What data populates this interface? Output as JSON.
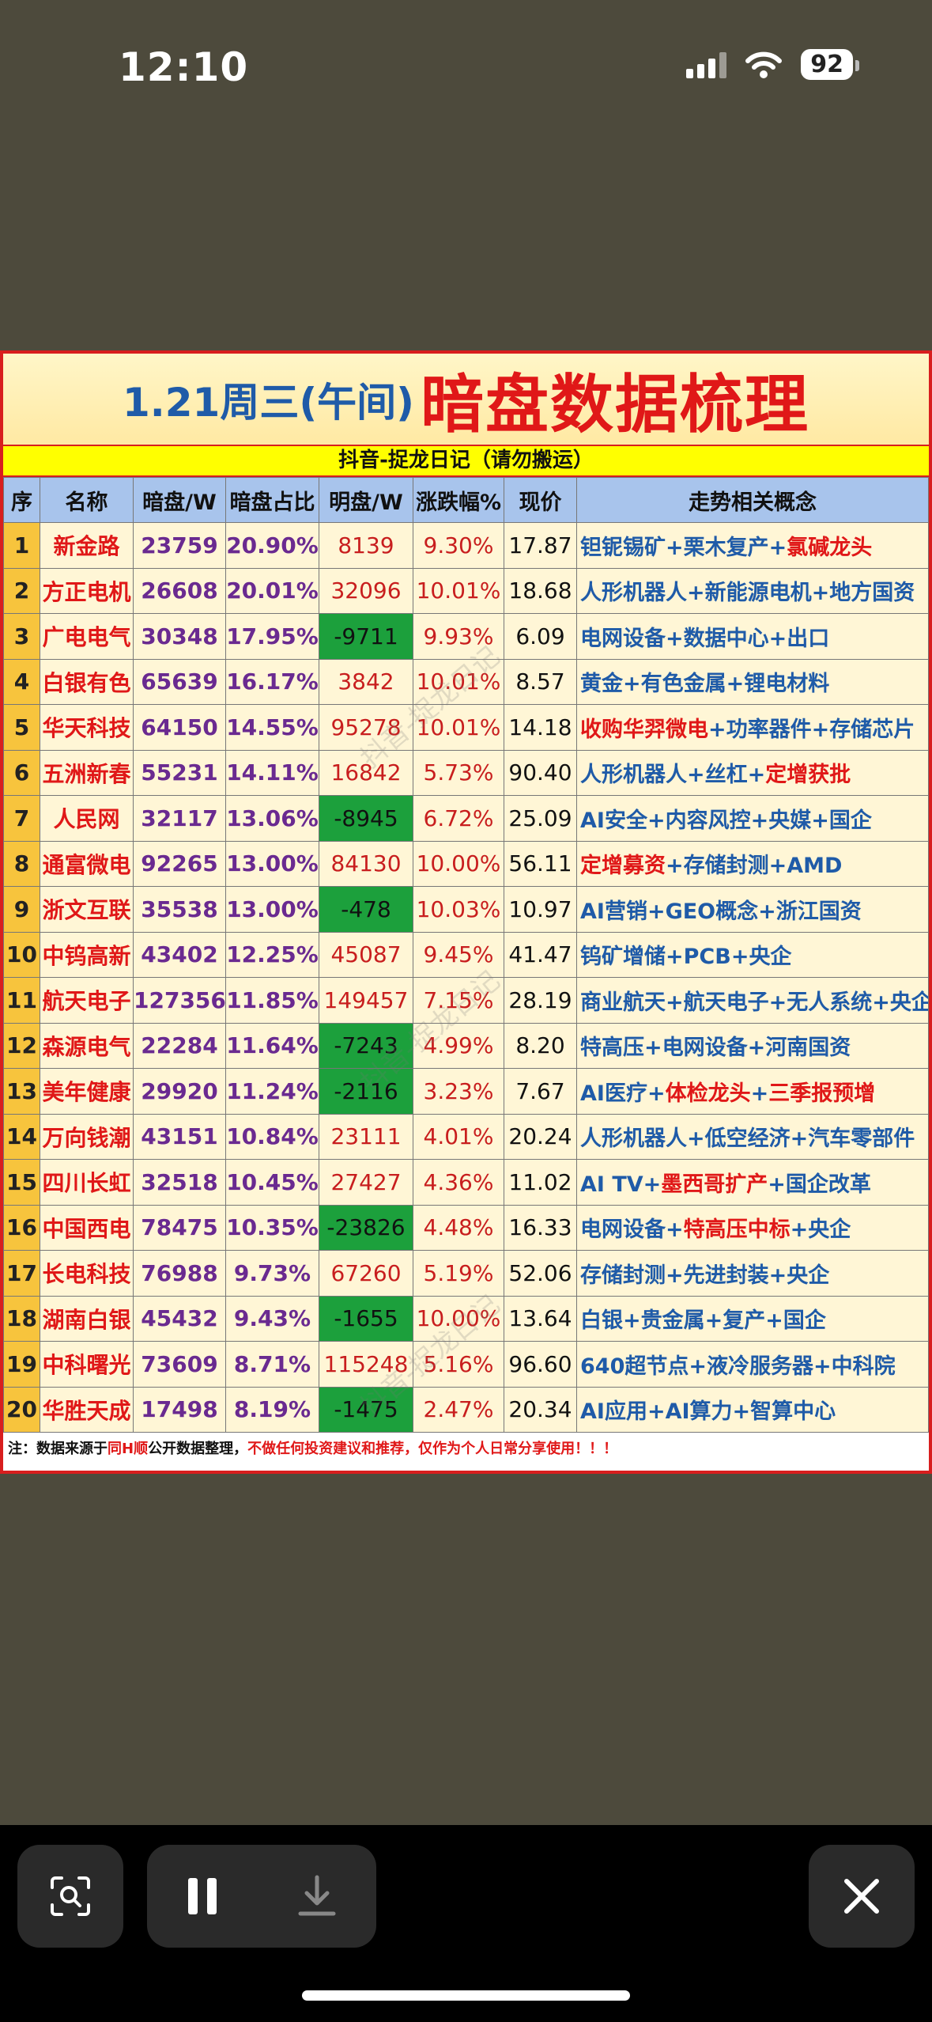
{
  "status_bar": {
    "time": "12:10",
    "battery": "92"
  },
  "card": {
    "title_date": "1.21周三(午间)",
    "title_main": "暗盘数据梳理",
    "subtitle": "抖音-捉龙日记（请勿搬运）",
    "headers": [
      "序",
      "名称",
      "暗盘/W",
      "暗盘占比",
      "明盘/W",
      "涨跌幅%",
      "现价",
      "走势相关概念"
    ],
    "rows": [
      {
        "seq": "1",
        "name": "新金路",
        "dark": "23759",
        "ratio": "20.90%",
        "ming": "8139",
        "chg": "9.30%",
        "price": "17.87",
        "concept": [
          {
            "t": "钽铌锡矿",
            "r": false
          },
          {
            "t": "+",
            "r": false
          },
          {
            "t": "栗木复产",
            "r": false
          },
          {
            "t": "+",
            "r": false
          },
          {
            "t": "氯碱龙头",
            "r": true
          }
        ]
      },
      {
        "seq": "2",
        "name": "方正电机",
        "dark": "26608",
        "ratio": "20.01%",
        "ming": "32096",
        "chg": "10.01%",
        "price": "18.68",
        "concept": [
          {
            "t": "人形机器人",
            "r": false
          },
          {
            "t": "+",
            "r": false
          },
          {
            "t": "新能源电机",
            "r": false
          },
          {
            "t": "+",
            "r": false
          },
          {
            "t": "地方国资",
            "r": false
          }
        ]
      },
      {
        "seq": "3",
        "name": "广电电气",
        "dark": "30348",
        "ratio": "17.95%",
        "ming": "-9711",
        "chg": "9.93%",
        "price": "6.09",
        "concept": [
          {
            "t": "电网设备",
            "r": false
          },
          {
            "t": "+",
            "r": false
          },
          {
            "t": "数据中心",
            "r": false
          },
          {
            "t": "+",
            "r": false
          },
          {
            "t": "出口",
            "r": false
          }
        ]
      },
      {
        "seq": "4",
        "name": "白银有色",
        "dark": "65639",
        "ratio": "16.17%",
        "ming": "3842",
        "chg": "10.01%",
        "price": "8.57",
        "concept": [
          {
            "t": "黄金",
            "r": false
          },
          {
            "t": "+",
            "r": false
          },
          {
            "t": "有色金属",
            "r": false
          },
          {
            "t": "+",
            "r": false
          },
          {
            "t": "锂电材料",
            "r": false
          }
        ]
      },
      {
        "seq": "5",
        "name": "华天科技",
        "dark": "64150",
        "ratio": "14.55%",
        "ming": "95278",
        "chg": "10.01%",
        "price": "14.18",
        "concept": [
          {
            "t": "收购华羿微电",
            "r": true
          },
          {
            "t": "+",
            "r": false
          },
          {
            "t": "功率器件",
            "r": false
          },
          {
            "t": "+",
            "r": false
          },
          {
            "t": "存储芯片",
            "r": false
          }
        ]
      },
      {
        "seq": "6",
        "name": "五洲新春",
        "dark": "55231",
        "ratio": "14.11%",
        "ming": "16842",
        "chg": "5.73%",
        "price": "90.40",
        "concept": [
          {
            "t": "人形机器人",
            "r": false
          },
          {
            "t": "+",
            "r": false
          },
          {
            "t": "丝杠",
            "r": false
          },
          {
            "t": "+",
            "r": false
          },
          {
            "t": "定增获批",
            "r": true
          }
        ]
      },
      {
        "seq": "7",
        "name": "人民网",
        "dark": "32117",
        "ratio": "13.06%",
        "ming": "-8945",
        "chg": "6.72%",
        "price": "25.09",
        "concept": [
          {
            "t": "AI安全",
            "r": false
          },
          {
            "t": "+",
            "r": false
          },
          {
            "t": "内容风控",
            "r": false
          },
          {
            "t": "+",
            "r": false
          },
          {
            "t": "央媒",
            "r": false
          },
          {
            "t": "+",
            "r": false
          },
          {
            "t": "国企",
            "r": false
          }
        ]
      },
      {
        "seq": "8",
        "name": "通富微电",
        "dark": "92265",
        "ratio": "13.00%",
        "ming": "84130",
        "chg": "10.00%",
        "price": "56.11",
        "concept": [
          {
            "t": "定增募资",
            "r": true
          },
          {
            "t": "+",
            "r": false
          },
          {
            "t": "存储封测",
            "r": false
          },
          {
            "t": "+",
            "r": false
          },
          {
            "t": "AMD",
            "r": false
          }
        ]
      },
      {
        "seq": "9",
        "name": "浙文互联",
        "dark": "35538",
        "ratio": "13.00%",
        "ming": "-478",
        "chg": "10.03%",
        "price": "10.97",
        "concept": [
          {
            "t": "AI营销",
            "r": false
          },
          {
            "t": "+",
            "r": false
          },
          {
            "t": "GEO概念",
            "r": false
          },
          {
            "t": "+",
            "r": false
          },
          {
            "t": "浙江国资",
            "r": false
          }
        ]
      },
      {
        "seq": "10",
        "name": "中钨高新",
        "dark": "43402",
        "ratio": "12.25%",
        "ming": "45087",
        "chg": "9.45%",
        "price": "41.47",
        "concept": [
          {
            "t": "钨矿增储",
            "r": false
          },
          {
            "t": "+",
            "r": false
          },
          {
            "t": "PCB",
            "r": false
          },
          {
            "t": "+",
            "r": false
          },
          {
            "t": "央企",
            "r": false
          }
        ]
      },
      {
        "seq": "11",
        "name": "航天电子",
        "dark": "127356",
        "ratio": "11.85%",
        "ming": "149457",
        "chg": "7.15%",
        "price": "28.19",
        "concept": [
          {
            "t": "商业航天",
            "r": false
          },
          {
            "t": "+",
            "r": false
          },
          {
            "t": "航天电子",
            "r": false
          },
          {
            "t": "+",
            "r": false
          },
          {
            "t": "无人系统",
            "r": false
          },
          {
            "t": "+",
            "r": false
          },
          {
            "t": "央企",
            "r": false
          }
        ]
      },
      {
        "seq": "12",
        "name": "森源电气",
        "dark": "22284",
        "ratio": "11.64%",
        "ming": "-7243",
        "chg": "4.99%",
        "price": "8.20",
        "concept": [
          {
            "t": "特高压",
            "r": false
          },
          {
            "t": "+",
            "r": false
          },
          {
            "t": "电网设备",
            "r": false
          },
          {
            "t": "+",
            "r": false
          },
          {
            "t": "河南国资",
            "r": false
          }
        ]
      },
      {
        "seq": "13",
        "name": "美年健康",
        "dark": "29920",
        "ratio": "11.24%",
        "ming": "-2116",
        "chg": "3.23%",
        "price": "7.67",
        "concept": [
          {
            "t": "AI医疗",
            "r": false
          },
          {
            "t": "+",
            "r": false
          },
          {
            "t": "体检龙头",
            "r": true
          },
          {
            "t": "+",
            "r": false
          },
          {
            "t": "三季报预增",
            "r": true
          }
        ]
      },
      {
        "seq": "14",
        "name": "万向钱潮",
        "dark": "43151",
        "ratio": "10.84%",
        "ming": "23111",
        "chg": "4.01%",
        "price": "20.24",
        "concept": [
          {
            "t": "人形机器人",
            "r": false
          },
          {
            "t": "+",
            "r": false
          },
          {
            "t": "低空经济",
            "r": false
          },
          {
            "t": "+",
            "r": false
          },
          {
            "t": "汽车零部件",
            "r": false
          }
        ]
      },
      {
        "seq": "15",
        "name": "四川长虹",
        "dark": "32518",
        "ratio": "10.45%",
        "ming": "27427",
        "chg": "4.36%",
        "price": "11.02",
        "concept": [
          {
            "t": "AI TV",
            "r": false
          },
          {
            "t": "+",
            "r": false
          },
          {
            "t": "墨西哥扩产",
            "r": true
          },
          {
            "t": "+",
            "r": false
          },
          {
            "t": "国企改革",
            "r": false
          }
        ]
      },
      {
        "seq": "16",
        "name": "中国西电",
        "dark": "78475",
        "ratio": "10.35%",
        "ming": "-23826",
        "chg": "4.48%",
        "price": "16.33",
        "concept": [
          {
            "t": "电网设备",
            "r": false
          },
          {
            "t": "+",
            "r": false
          },
          {
            "t": "特高压中标",
            "r": true
          },
          {
            "t": "+",
            "r": false
          },
          {
            "t": "央企",
            "r": false
          }
        ]
      },
      {
        "seq": "17",
        "name": "长电科技",
        "dark": "76988",
        "ratio": "9.73%",
        "ming": "67260",
        "chg": "5.19%",
        "price": "52.06",
        "concept": [
          {
            "t": "存储封测",
            "r": false
          },
          {
            "t": "+",
            "r": false
          },
          {
            "t": "先进封装",
            "r": false
          },
          {
            "t": "+",
            "r": false
          },
          {
            "t": "央企",
            "r": false
          }
        ]
      },
      {
        "seq": "18",
        "name": "湖南白银",
        "dark": "45432",
        "ratio": "9.43%",
        "ming": "-1655",
        "chg": "10.00%",
        "price": "13.64",
        "concept": [
          {
            "t": "白银",
            "r": false
          },
          {
            "t": "+",
            "r": false
          },
          {
            "t": "贵金属",
            "r": false
          },
          {
            "t": "+",
            "r": false
          },
          {
            "t": "复产",
            "r": false
          },
          {
            "t": "+",
            "r": false
          },
          {
            "t": "国企",
            "r": false
          }
        ]
      },
      {
        "seq": "19",
        "name": "中科曙光",
        "dark": "73609",
        "ratio": "8.71%",
        "ming": "115248",
        "chg": "5.16%",
        "price": "96.60",
        "concept": [
          {
            "t": "640超节点",
            "r": false
          },
          {
            "t": "+",
            "r": false
          },
          {
            "t": "液冷服务器",
            "r": false
          },
          {
            "t": "+",
            "r": false
          },
          {
            "t": "中科院",
            "r": false
          }
        ]
      },
      {
        "seq": "20",
        "name": "华胜天成",
        "dark": "17498",
        "ratio": "8.19%",
        "ming": "-1475",
        "chg": "2.47%",
        "price": "20.34",
        "concept": [
          {
            "t": "AI应用",
            "r": false
          },
          {
            "t": "+",
            "r": false
          },
          {
            "t": "AI算力",
            "r": false
          },
          {
            "t": "+",
            "r": false
          },
          {
            "t": "智算中心",
            "r": false
          }
        ]
      }
    ],
    "note_prefix": "注：数据来源于",
    "note_source": "同H顺",
    "note_mid": "公开数据整理，",
    "note_warning": "不做任何投资建议和推荐，仅作为个人日常分享使用！！！",
    "watermark": "抖音-捉龙日记"
  },
  "controls": {
    "icons": [
      "visual-lookup-icon",
      "pause-icon",
      "download-icon",
      "close-icon"
    ]
  }
}
